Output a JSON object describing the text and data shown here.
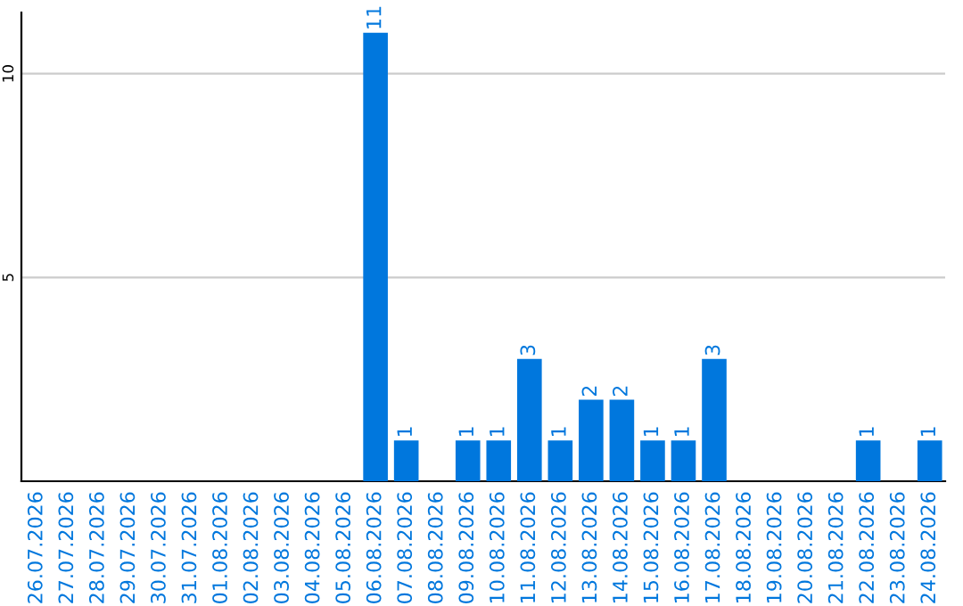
{
  "chart_data": {
    "type": "bar",
    "categories": [
      "26.07.2026",
      "27.07.2026",
      "28.07.2026",
      "29.07.2026",
      "30.07.2026",
      "31.07.2026",
      "01.08.2026",
      "02.08.2026",
      "03.08.2026",
      "04.08.2026",
      "05.08.2026",
      "06.08.2026",
      "07.08.2026",
      "08.08.2026",
      "09.08.2026",
      "10.08.2026",
      "11.08.2026",
      "12.08.2026",
      "13.08.2026",
      "14.08.2026",
      "15.08.2026",
      "16.08.2026",
      "17.08.2026",
      "18.08.2026",
      "19.08.2026",
      "20.08.2026",
      "21.08.2026",
      "22.08.2026",
      "23.08.2026",
      "24.08.2026"
    ],
    "values": [
      0,
      0,
      0,
      0,
      0,
      0,
      0,
      0,
      0,
      0,
      0,
      11,
      1,
      0,
      1,
      1,
      3,
      1,
      2,
      2,
      1,
      1,
      3,
      0,
      0,
      0,
      0,
      1,
      0,
      1
    ],
    "value_labels": [
      null,
      null,
      null,
      null,
      null,
      null,
      null,
      null,
      null,
      null,
      null,
      "11",
      "1",
      null,
      "1",
      "1",
      "3",
      "1",
      "2",
      "2",
      "1",
      "1",
      "3",
      null,
      null,
      null,
      null,
      "1",
      null,
      "1"
    ],
    "color": "#0077dd",
    "ylim": [
      0,
      11.5
    ],
    "yticks": [
      5,
      10
    ],
    "grid": "y"
  }
}
